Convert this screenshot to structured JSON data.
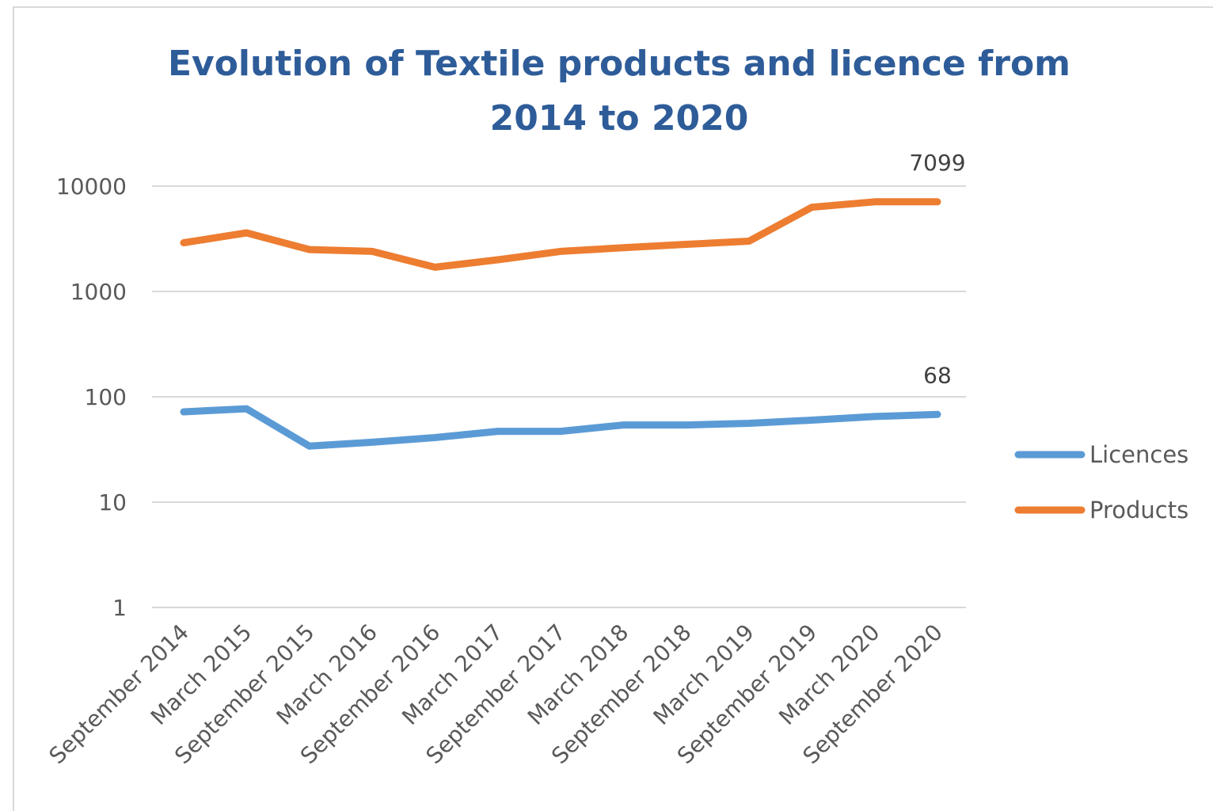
{
  "chart_data": {
    "type": "line",
    "title_lines": [
      "Evolution of Textile products and licence from",
      "2014 to 2020"
    ],
    "xlabel": "",
    "ylabel": "",
    "y_scale": "log",
    "ylim": [
      1,
      10000
    ],
    "y_ticks": [
      "1",
      "10",
      "100",
      "1000",
      "10000"
    ],
    "grid": true,
    "legend_position": "right",
    "categories": [
      "September 2014",
      "March 2015",
      "September 2015",
      "March 2016",
      "September 2016",
      "March 2017",
      "September 2017",
      "March 2018",
      "September 2018",
      "March 2019",
      "September 2019",
      "March 2020",
      "September 2020"
    ],
    "series": [
      {
        "name": "Licences",
        "color": "#5b9bd5",
        "values": [
          72,
          77,
          34,
          37,
          41,
          47,
          47,
          54,
          54,
          56,
          60,
          65,
          68
        ],
        "data_labels": [
          {
            "index": 12,
            "text": "68"
          }
        ]
      },
      {
        "name": "Products",
        "color": "#ed7d31",
        "values": [
          2900,
          3600,
          2500,
          2400,
          1700,
          2000,
          2400,
          2600,
          2800,
          3000,
          6300,
          7099,
          7099
        ],
        "data_labels": [
          {
            "index": 12,
            "text": "7099"
          }
        ]
      }
    ]
  }
}
